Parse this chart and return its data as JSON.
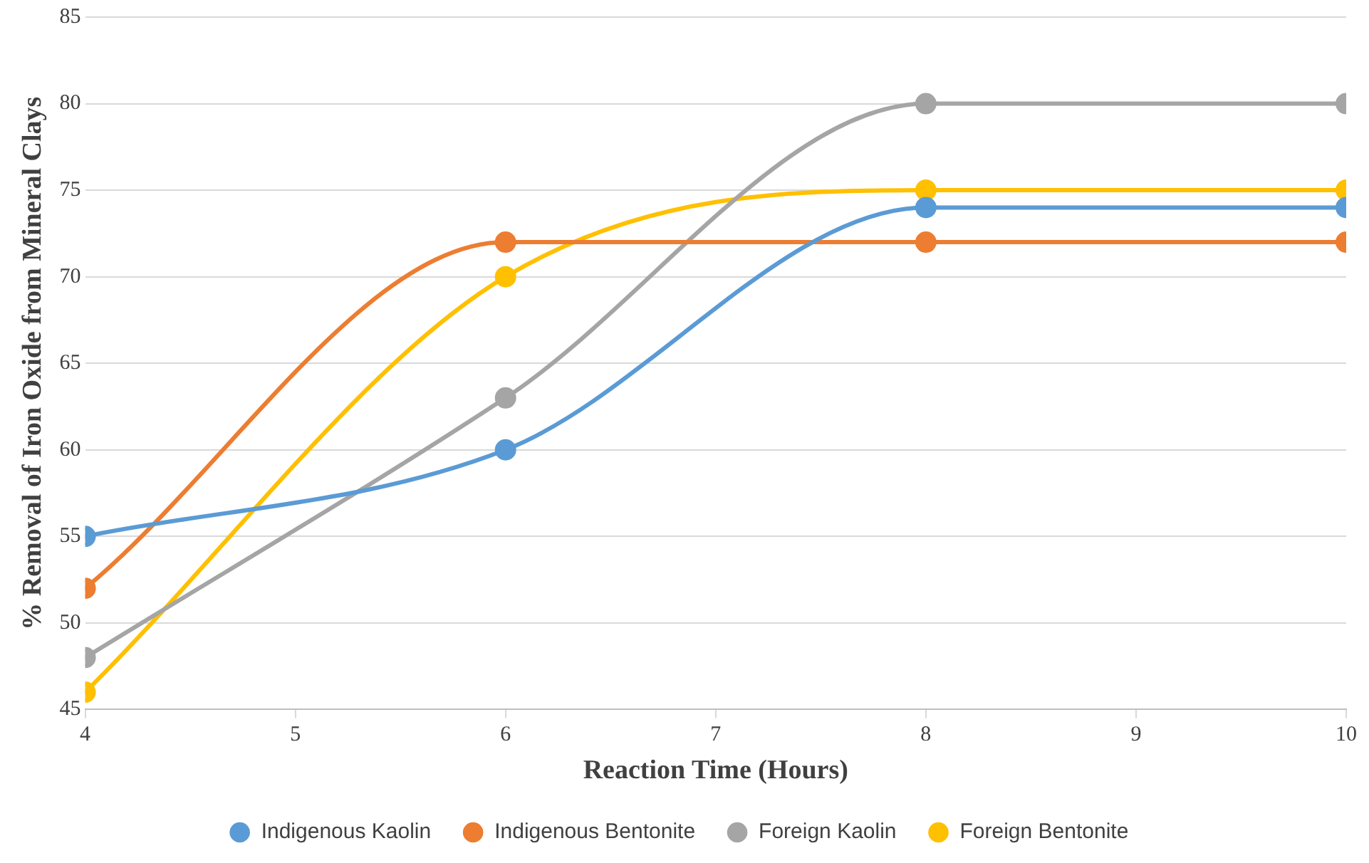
{
  "chart_data": {
    "type": "line",
    "xlabel": "Reaction Time (Hours)",
    "ylabel": "% Removal of Iron Oxide from Mineral Clays",
    "x": [
      4,
      6,
      8,
      10
    ],
    "series": [
      {
        "name": "Indigenous Kaolin",
        "color": "#5b9bd5",
        "values": [
          55,
          60,
          74,
          74
        ]
      },
      {
        "name": "Indigenous Bentonite",
        "color": "#ed7d31",
        "values": [
          52,
          72,
          72,
          72
        ]
      },
      {
        "name": "Foreign Kaolin",
        "color": "#a5a5a5",
        "values": [
          48,
          63,
          80,
          80
        ]
      },
      {
        "name": "Foreign Bentonite",
        "color": "#ffc000",
        "values": [
          46,
          70,
          75,
          75
        ]
      }
    ],
    "xlim": [
      4,
      10
    ],
    "xticks": [
      4,
      5,
      6,
      7,
      8,
      9,
      10
    ],
    "ylim": [
      45,
      85
    ],
    "yticks": [
      45,
      50,
      55,
      60,
      65,
      70,
      75,
      80,
      85
    ],
    "grid": "y",
    "legend": "bottom",
    "marker": "circle",
    "line_style": "solid"
  }
}
